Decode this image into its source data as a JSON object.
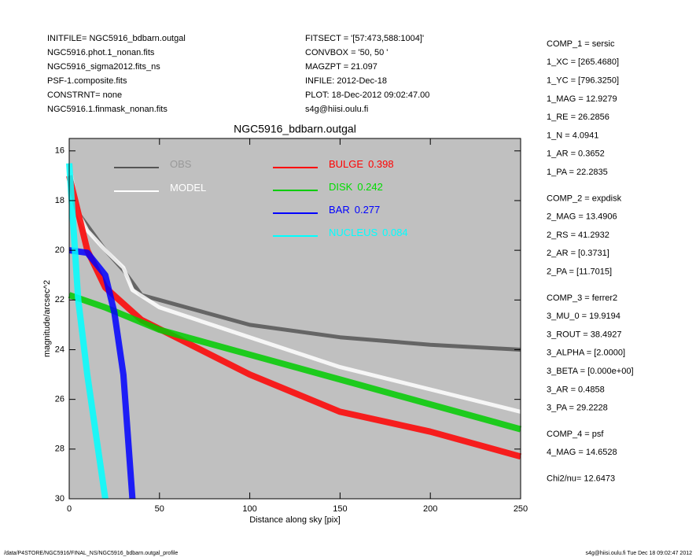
{
  "header_left": [
    "INITFILE= NGC5916_bdbarn.outgal",
    "NGC5916.phot.1_nonan.fits",
    "NGC5916_sigma2012.fits_ns",
    "PSF-1.composite.fits",
    "CONSTRNT= none",
    "NGC5916.1.finmask_nonan.fits"
  ],
  "header_center": [
    "FITSECT = '[57:473,588:1004]'",
    "CONVBOX = '50, 50  '",
    "MAGZPT =            21.097",
    "INFILE: 2012-Dec-18",
    "PLOT: 18-Dec-2012 09:02:47.00",
    "s4g@hiisi.oulu.fi"
  ],
  "side_panel": [
    [
      "COMP_1  = sersic",
      "1_XC    = [265.4680]",
      "1_YC    = [796.3250]",
      "1_MAG   = 12.9279",
      "1_RE    = 26.2856",
      "1_N     = 4.0941",
      "1_AR    = 0.3652",
      "1_PA    = 22.2835"
    ],
    [
      "COMP_2  = expdisk",
      "2_MAG   = 13.4906",
      "2_RS    = 41.2932",
      "2_AR    = [0.3731]",
      "2_PA    = [11.7015]"
    ],
    [
      "COMP_3  = ferrer2",
      "3_MU_0  = 19.9194",
      "3_ROUT  = 38.4927",
      "3_ALPHA = [2.0000]",
      "3_BETA  = [0.000e+00]",
      "3_AR    = 0.4858",
      "3_PA    = 29.2228"
    ],
    [
      "COMP_4  = psf",
      "4_MAG   = 14.6528"
    ],
    [
      "Chi2/nu=      12.6473"
    ]
  ],
  "footer_left": "/data/P4STORE/NGC5916/FINAL_NS/NGC5916_bdbarn.outgal_profile",
  "footer_right": "s4g@hiisi.oulu.fi  Tue Dec 18 09:02:47 2012",
  "chart_data": {
    "type": "line",
    "title": "NGC5916_bdbarn.outgal",
    "x_label": "Distance along sky [pix]",
    "y_label": "magnitude/arcsec^2",
    "xlim": [
      0,
      250
    ],
    "ylim": [
      30,
      15.5
    ],
    "xticks": [
      0,
      50,
      100,
      150,
      200,
      250
    ],
    "yticks": [
      16,
      18,
      20,
      22,
      24,
      26,
      28,
      30
    ],
    "background": "#c0c0c0",
    "series": [
      {
        "name": "OBS",
        "color": "#555555",
        "legend_color": "#999999",
        "x": [
          0,
          5,
          10,
          20,
          30,
          40,
          50,
          75,
          100,
          150,
          200,
          250
        ],
        "values": [
          16.5,
          18.5,
          19.0,
          20.0,
          20.8,
          21.8,
          22.0,
          22.5,
          23.0,
          23.5,
          23.8,
          24.0
        ]
      },
      {
        "name": "MODEL",
        "color": "#ffffff",
        "legend_color": "#ffffff",
        "x": [
          0,
          5,
          10,
          20,
          30,
          35,
          50,
          100,
          150,
          200,
          250
        ],
        "values": [
          16.5,
          18.5,
          19.2,
          20.0,
          20.7,
          21.6,
          22.3,
          23.5,
          24.7,
          25.6,
          26.5
        ]
      },
      {
        "name": "BULGE",
        "fraction": 0.398,
        "color": "#ff0000",
        "legend_color": "#ff0000",
        "x": [
          0,
          10,
          20,
          40,
          100,
          150,
          200,
          250
        ],
        "values": [
          17.0,
          20.0,
          21.5,
          22.8,
          25.0,
          26.5,
          27.3,
          28.3
        ]
      },
      {
        "name": "DISK",
        "fraction": 0.242,
        "color": "#00cc00",
        "legend_color": "#00dd00",
        "x": [
          0,
          20,
          50,
          100,
          150,
          200,
          250
        ],
        "values": [
          21.8,
          22.3,
          23.2,
          24.2,
          25.2,
          26.2,
          27.2
        ]
      },
      {
        "name": "BAR",
        "fraction": 0.277,
        "color": "#0000ff",
        "legend_color": "#0000ff",
        "x": [
          0,
          10,
          20,
          25,
          30,
          33,
          35
        ],
        "values": [
          20.0,
          20.1,
          21.0,
          22.5,
          25.0,
          28.0,
          30.0
        ]
      },
      {
        "name": "NUCLEUS",
        "fraction": 0.084,
        "color": "#00ffff",
        "legend_color": "#00ffff",
        "x": [
          0,
          5,
          10,
          15,
          18,
          20
        ],
        "values": [
          16.5,
          22.0,
          25.0,
          27.5,
          29.0,
          30.0
        ]
      }
    ]
  }
}
